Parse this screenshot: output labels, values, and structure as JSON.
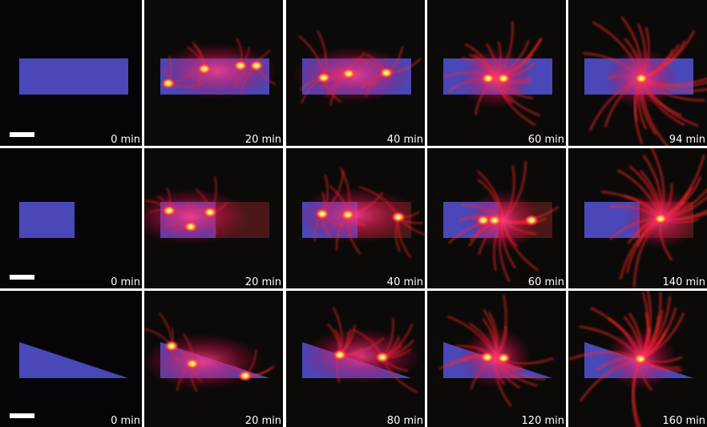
{
  "panels": [
    [
      "0 min",
      "20 min",
      "40 min",
      "60 min",
      "94 min"
    ],
    [
      "0 min",
      "20 min",
      "40 min",
      "60 min",
      "140 min"
    ],
    [
      "0 min",
      "20 min",
      "80 min",
      "120 min",
      "160 min"
    ]
  ]
}
